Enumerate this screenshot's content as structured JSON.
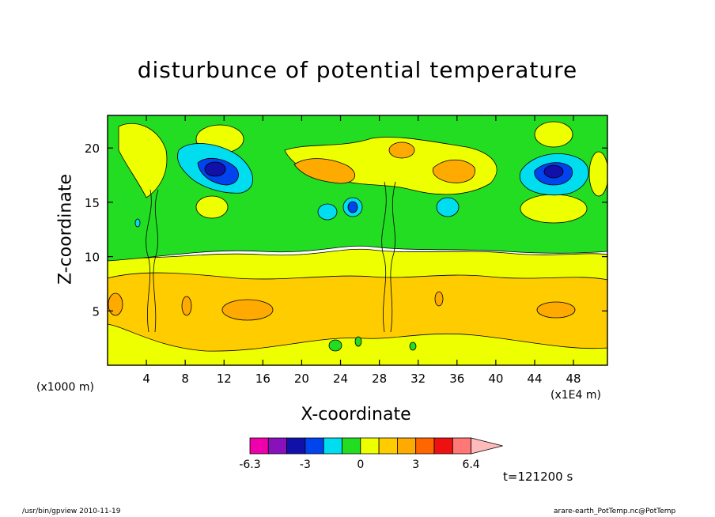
{
  "chart_data": {
    "type": "heatmap",
    "title": "disturbunce of potential temperature",
    "xlabel": "X-coordinate",
    "ylabel": "Z-coordinate",
    "x_scale_label": "(x1E4 m)",
    "z_scale_label": "(x1000 m)",
    "xlim": [
      0,
      51.5
    ],
    "ylim": [
      0,
      23
    ],
    "x_ticks": [
      4,
      8,
      12,
      16,
      20,
      24,
      28,
      32,
      36,
      40,
      44,
      48
    ],
    "y_ticks": [
      5,
      10,
      15,
      20
    ],
    "colorbar": {
      "labels": [
        "-6.3",
        "-3",
        "0",
        "3",
        "6.4"
      ],
      "colors": [
        "#ee00aa",
        "#8811bb",
        "#1111aa",
        "#0044ee",
        "#00ddee",
        "#22dd22",
        "#eeff00",
        "#ffcc00",
        "#ffaa00",
        "#ff6600",
        "#ee1111",
        "#ff7777",
        "#ffbbbb"
      ]
    },
    "time_label": "t=121200 s",
    "features": [
      {
        "level": "negative-strong",
        "x": 11.5,
        "z": 17.8,
        "color": "#1111aa"
      },
      {
        "level": "negative-strong",
        "x": 45.5,
        "z": 17.8,
        "color": "#1111aa"
      },
      {
        "level": "negative-weak",
        "x": 25.0,
        "z": 14.8,
        "color": "#0044ee"
      },
      {
        "level": "positive-weak",
        "x": 14.5,
        "z": 5.0,
        "color": "#ffaa00"
      },
      {
        "level": "positive-weak",
        "x": 45.0,
        "z": 5.0,
        "color": "#ffaa00"
      }
    ]
  },
  "footer": {
    "left": "/usr/bin/gpview   2010-11-19",
    "right": "arare-earth_PotTemp.nc@PotTemp"
  }
}
